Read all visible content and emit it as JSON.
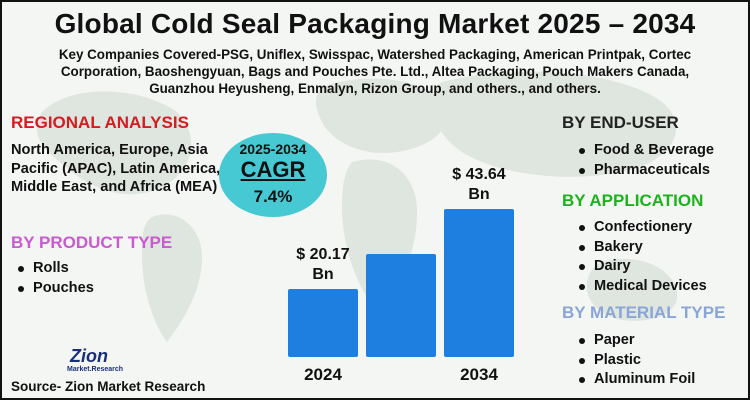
{
  "title": "Global Cold Seal Packaging Market 2025 – 2034",
  "companies": "Key Companies Covered-PSG, Uniflex, Swisspac, Watershed Packaging, American Printpak, Cortec Corporation, Baoshengyuan, Bags and Pouches Pte. Ltd., Altea Packaging, Pouch Makers Canada, Guanzhou Heyusheng, Enmalyn, Rizon Group, and others., and others.",
  "regional": {
    "heading": "REGIONAL ANALYSIS",
    "text": "North America, Europe, Asia Pacific (APAC), Latin America, Middle East, and Africa (MEA)"
  },
  "product_type": {
    "heading": "BY PRODUCT TYPE",
    "items": [
      "Rolls",
      "Pouches"
    ]
  },
  "end_user": {
    "heading": "BY END-USER",
    "items": [
      "Food & Beverage",
      "Pharmaceuticals"
    ]
  },
  "application": {
    "heading": "BY APPLICATION",
    "items": [
      "Confectionery",
      "Bakery",
      "Dairy",
      "Medical Devices"
    ]
  },
  "material_type": {
    "heading": "BY MATERIAL TYPE",
    "items": [
      "Paper",
      "Plastic",
      "Aluminum Foil"
    ]
  },
  "cagr": {
    "years": "2025-2034",
    "label": "CAGR",
    "value": "7.4%"
  },
  "logo": {
    "name": "Zion",
    "sub": "Market.Research"
  },
  "source": "Source- Zion Market Research",
  "colors": {
    "bar": "#1f7fe0",
    "regional_heading": "#d51c20",
    "product_heading": "#c95ad0",
    "application_heading": "#1bb31b",
    "material_heading": "#8aa6d6",
    "cagr_circle": "#46c9d3"
  },
  "chart_data": {
    "type": "bar",
    "categories": [
      "2024",
      "",
      "2034"
    ],
    "values": [
      20.17,
      30.5,
      43.64
    ],
    "data_labels": [
      "$ 20.17\nBn",
      "",
      "$ 43.64\nBn"
    ],
    "tick_labels": [
      "2024",
      "",
      "2034"
    ],
    "ylim": [
      0,
      50
    ],
    "grid": false,
    "title": ""
  }
}
